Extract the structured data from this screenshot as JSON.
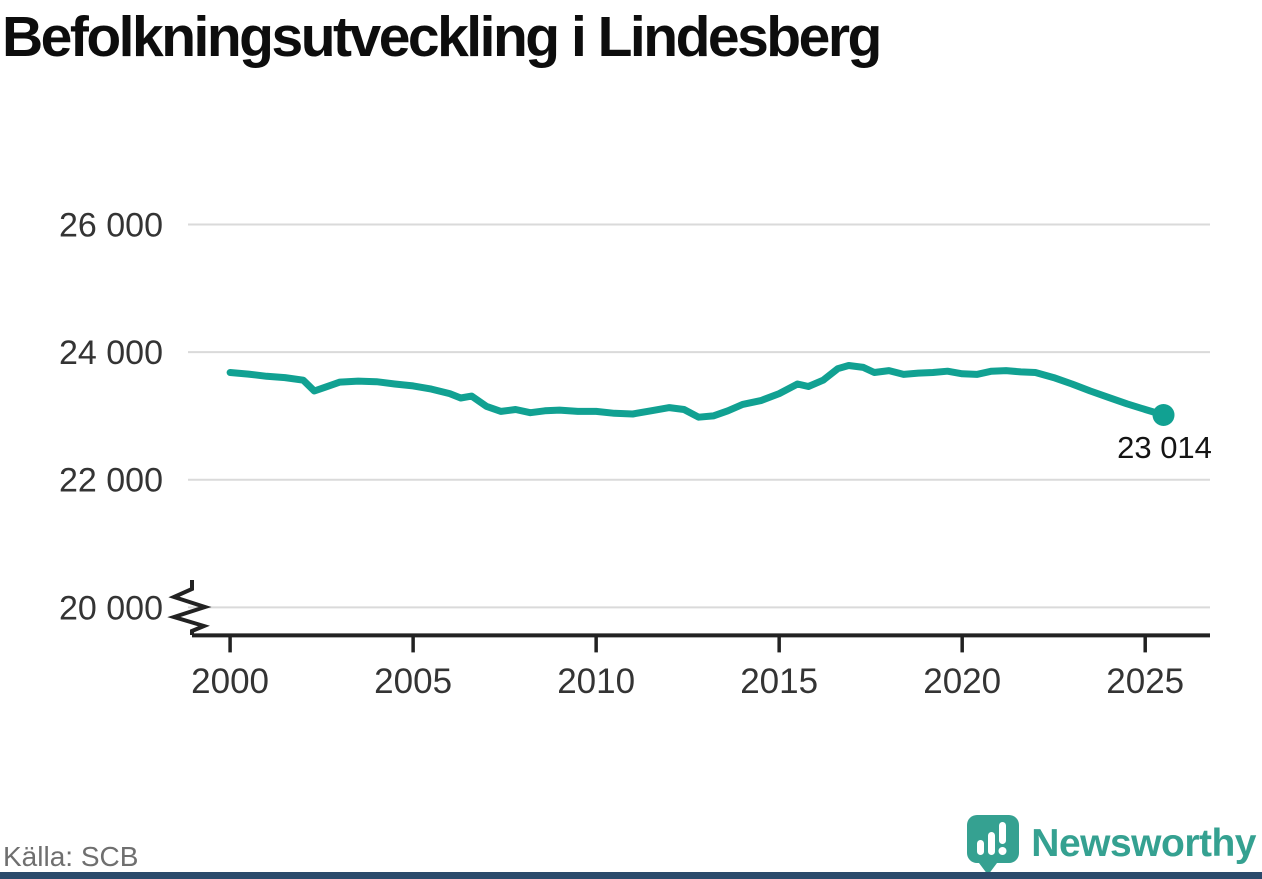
{
  "title": "Befolkningsutveckling i Lindesberg",
  "footer": {
    "source": "Källa: SCB",
    "brand": "Newsworthy"
  },
  "colors": {
    "line": "#11a192",
    "grid": "#dadada",
    "axis": "#222222",
    "tick_label": "#343434",
    "title": "#0d0d0d",
    "source": "#6f6f6f",
    "brand": "#35a191",
    "bottom_bar": "#2a4a6b",
    "annotation": "#141414"
  },
  "chart_data": {
    "type": "line",
    "title": "Befolkningsutveckling i Lindesberg",
    "xlabel": "",
    "ylabel": "",
    "xlim": [
      1998.85,
      2026.77
    ],
    "ylim": [
      19560,
      27010
    ],
    "x_ticks": [
      2000,
      2005,
      2010,
      2015,
      2020,
      2025
    ],
    "y_gridlines": [
      20000,
      22000,
      24000,
      26000
    ],
    "y_tick_labels": [
      "20 000",
      "22 000",
      "24 000",
      "26 000"
    ],
    "grid": "horizontal-only",
    "legend": "none",
    "axis_break_at_bottom_left": true,
    "end_label": "23 014",
    "series": [
      {
        "name": "Befolkning",
        "x": [
          2000,
          2000.5,
          2001,
          2001.5,
          2002,
          2002.3,
          2002.6,
          2003,
          2003.5,
          2004,
          2004.5,
          2005,
          2005.5,
          2006,
          2006.3,
          2006.6,
          2007,
          2007.4,
          2007.8,
          2008.2,
          2008.6,
          2009,
          2009.5,
          2010,
          2010.5,
          2011,
          2011.5,
          2012,
          2012.4,
          2012.8,
          2013.2,
          2013.6,
          2014,
          2014.5,
          2015,
          2015.5,
          2015.8,
          2016.2,
          2016.6,
          2016.9,
          2017.3,
          2017.6,
          2018,
          2018.4,
          2018.8,
          2019.2,
          2019.6,
          2020,
          2020.4,
          2020.8,
          2021.2,
          2021.6,
          2022,
          2022.5,
          2023,
          2023.5,
          2024,
          2024.5,
          2025,
          2025.5
        ],
        "y": [
          23680,
          23655,
          23620,
          23600,
          23560,
          23390,
          23450,
          23530,
          23545,
          23535,
          23500,
          23470,
          23420,
          23350,
          23280,
          23310,
          23150,
          23070,
          23100,
          23050,
          23080,
          23090,
          23070,
          23070,
          23040,
          23030,
          23080,
          23130,
          23100,
          22980,
          23000,
          23080,
          23180,
          23240,
          23350,
          23500,
          23460,
          23560,
          23740,
          23790,
          23760,
          23680,
          23710,
          23650,
          23670,
          23680,
          23700,
          23660,
          23650,
          23700,
          23710,
          23690,
          23680,
          23600,
          23500,
          23390,
          23290,
          23190,
          23100,
          23014
        ]
      }
    ]
  }
}
